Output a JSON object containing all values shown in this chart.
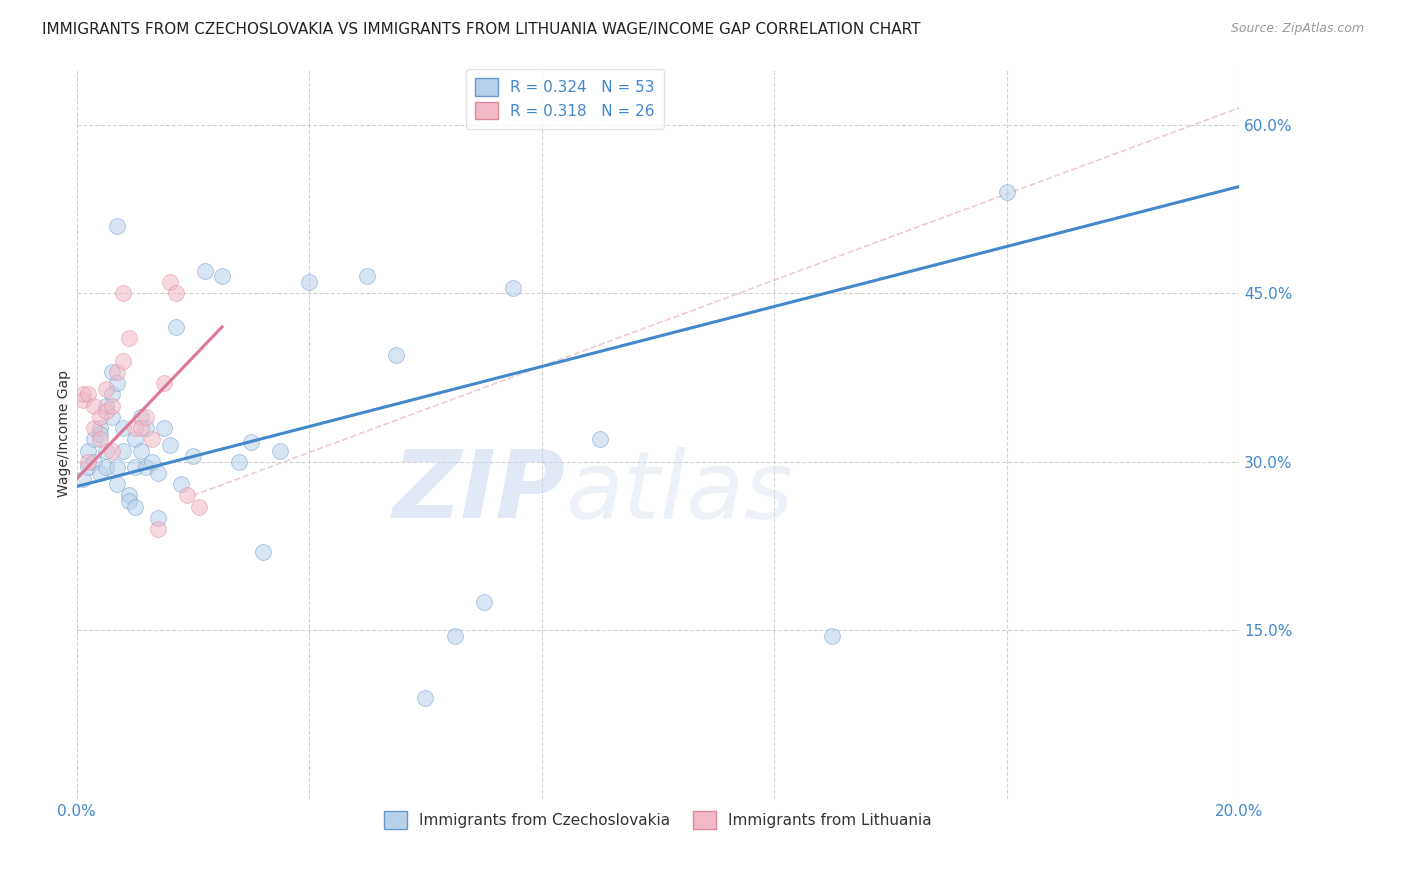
{
  "title": "IMMIGRANTS FROM CZECHOSLOVAKIA VS IMMIGRANTS FROM LITHUANIA WAGE/INCOME GAP CORRELATION CHART",
  "source": "Source: ZipAtlas.com",
  "ylabel": "Wage/Income Gap",
  "xlim": [
    0.0,
    0.2
  ],
  "ylim": [
    0.0,
    0.65
  ],
  "xticks": [
    0.0,
    0.04,
    0.08,
    0.12,
    0.16,
    0.2
  ],
  "xtick_labels": [
    "0.0%",
    "",
    "",
    "",
    "",
    "20.0%"
  ],
  "yticks": [
    0.15,
    0.3,
    0.45,
    0.6
  ],
  "ytick_labels": [
    "15.0%",
    "30.0%",
    "45.0%",
    "60.0%"
  ],
  "blue_color": "#b8d0e8",
  "pink_color": "#f2b8c6",
  "blue_edge_color": "#6699cc",
  "pink_edge_color": "#dd8899",
  "blue_line_color": "#4488cc",
  "pink_line_color": "#dd7799",
  "dashed_line_color": "#e8c0c8",
  "R_blue": 0.324,
  "N_blue": 53,
  "R_pink": 0.318,
  "N_pink": 26,
  "legend_label_blue": "Immigrants from Czechoslovakia",
  "legend_label_pink": "Immigrants from Lithuania",
  "watermark_zip": "ZIP",
  "watermark_atlas": "atlas",
  "blue_scatter_x": [
    0.001,
    0.002,
    0.002,
    0.003,
    0.003,
    0.004,
    0.004,
    0.004,
    0.005,
    0.005,
    0.005,
    0.006,
    0.006,
    0.006,
    0.007,
    0.007,
    0.007,
    0.007,
    0.008,
    0.008,
    0.009,
    0.009,
    0.01,
    0.01,
    0.01,
    0.011,
    0.011,
    0.012,
    0.012,
    0.013,
    0.014,
    0.014,
    0.015,
    0.016,
    0.017,
    0.018,
    0.02,
    0.022,
    0.025,
    0.028,
    0.03,
    0.032,
    0.035,
    0.04,
    0.05,
    0.055,
    0.06,
    0.065,
    0.07,
    0.075,
    0.09,
    0.13,
    0.16
  ],
  "blue_scatter_y": [
    0.285,
    0.295,
    0.31,
    0.3,
    0.32,
    0.33,
    0.325,
    0.29,
    0.31,
    0.295,
    0.35,
    0.34,
    0.36,
    0.38,
    0.37,
    0.295,
    0.28,
    0.51,
    0.31,
    0.33,
    0.27,
    0.265,
    0.32,
    0.295,
    0.26,
    0.31,
    0.34,
    0.33,
    0.295,
    0.3,
    0.25,
    0.29,
    0.33,
    0.315,
    0.42,
    0.28,
    0.305,
    0.47,
    0.465,
    0.3,
    0.318,
    0.22,
    0.31,
    0.46,
    0.465,
    0.395,
    0.09,
    0.145,
    0.175,
    0.455,
    0.32,
    0.145,
    0.54
  ],
  "pink_scatter_x": [
    0.001,
    0.001,
    0.002,
    0.002,
    0.003,
    0.003,
    0.004,
    0.004,
    0.005,
    0.005,
    0.006,
    0.006,
    0.007,
    0.008,
    0.008,
    0.009,
    0.01,
    0.011,
    0.012,
    0.013,
    0.014,
    0.015,
    0.016,
    0.017,
    0.019,
    0.021
  ],
  "pink_scatter_y": [
    0.36,
    0.355,
    0.3,
    0.36,
    0.33,
    0.35,
    0.34,
    0.32,
    0.345,
    0.365,
    0.35,
    0.31,
    0.38,
    0.39,
    0.45,
    0.41,
    0.33,
    0.33,
    0.34,
    0.32,
    0.24,
    0.37,
    0.46,
    0.45,
    0.27,
    0.26
  ],
  "blue_line_x": [
    0.0,
    0.2
  ],
  "blue_line_y": [
    0.278,
    0.545
  ],
  "pink_line_x": [
    0.0,
    0.025
  ],
  "pink_line_y": [
    0.285,
    0.42
  ],
  "dashed_line_x": [
    0.02,
    0.2
  ],
  "dashed_line_y": [
    0.27,
    0.615
  ],
  "marker_size": 130,
  "alpha": 0.55,
  "grid_color": "#cccccc",
  "background_color": "#ffffff",
  "title_fontsize": 11,
  "axis_label_fontsize": 10,
  "tick_fontsize": 11,
  "legend_fontsize": 11,
  "source_fontsize": 9
}
